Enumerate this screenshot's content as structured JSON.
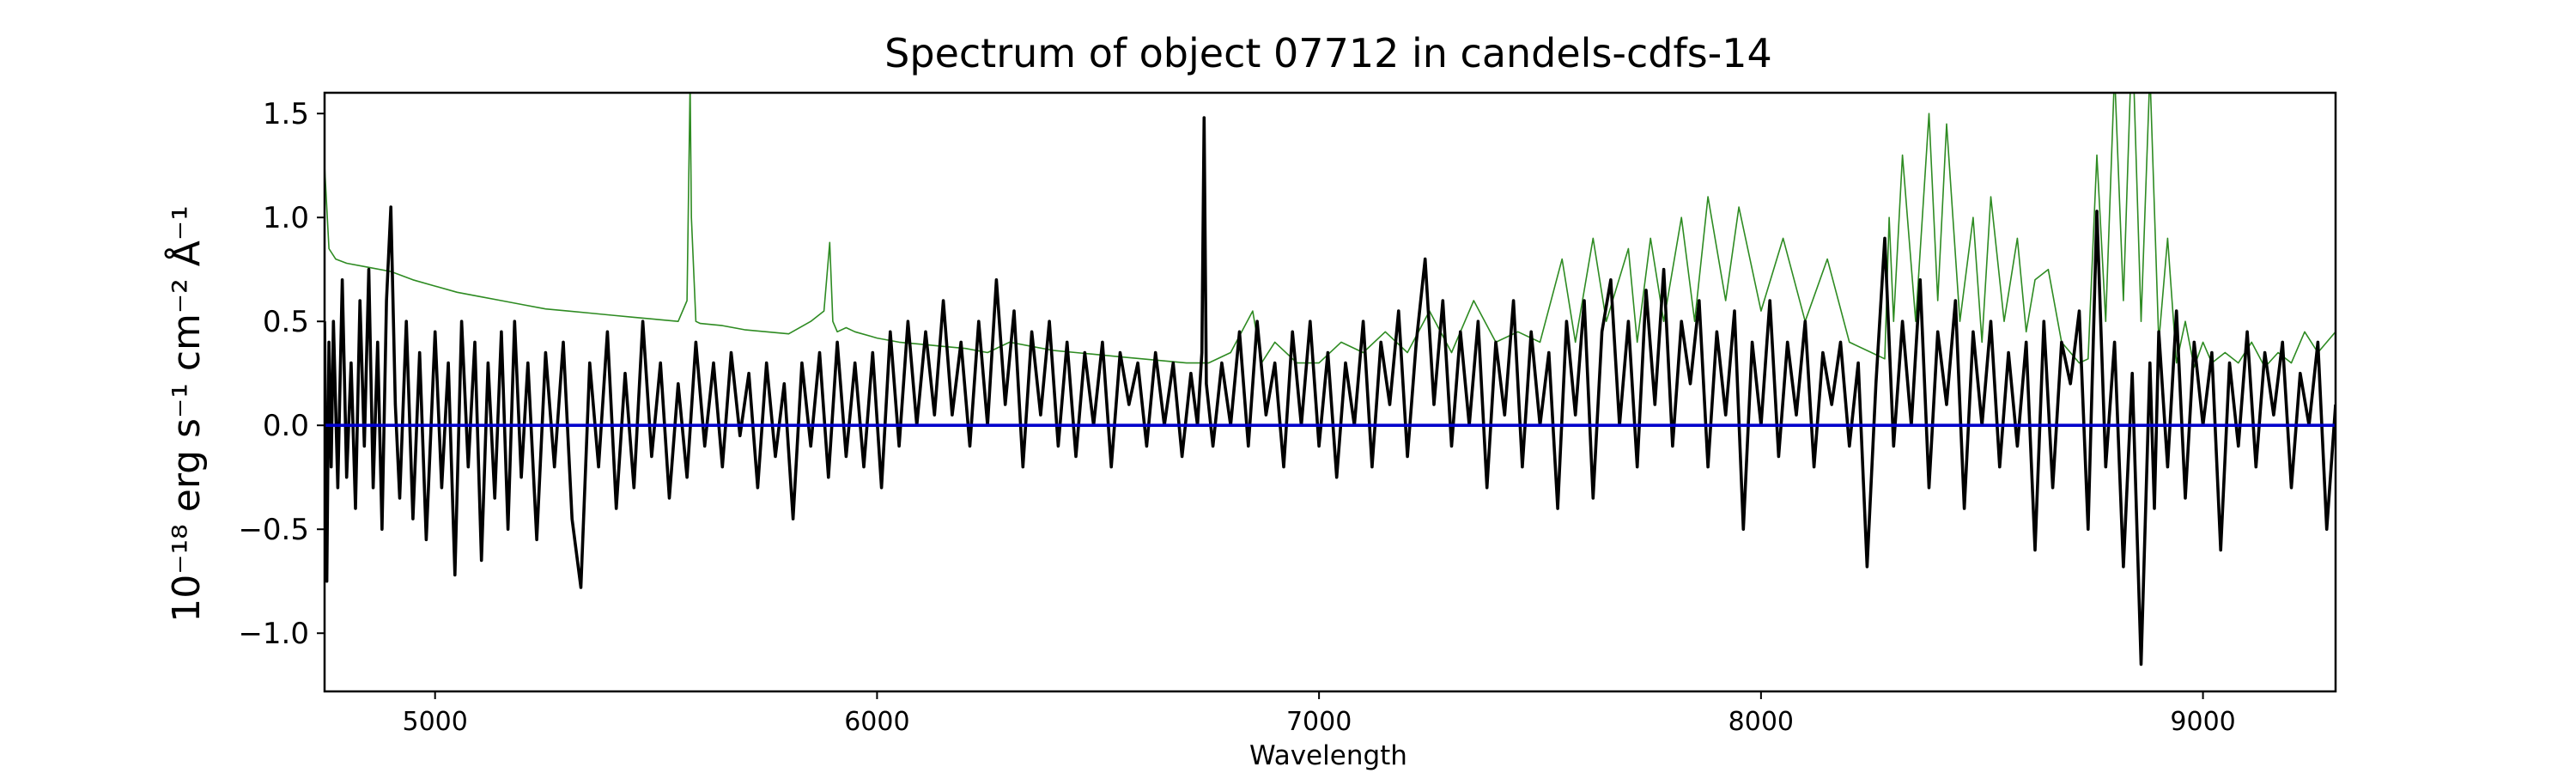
{
  "chart_data": {
    "type": "line",
    "title": "Spectrum of object 07712 in candels-cdfs-14",
    "xlabel": "Wavelength",
    "ylabel": "10⁻¹⁸ erg s⁻¹ cm⁻² Å⁻¹",
    "xlim": [
      4750,
      9300
    ],
    "ylim": [
      -1.28,
      1.6
    ],
    "xticks": [
      5000,
      6000,
      7000,
      8000,
      9000
    ],
    "yticks": [
      -1.0,
      -0.5,
      0.0,
      0.5,
      1.0,
      1.5
    ],
    "xtick_labels": [
      "5000",
      "6000",
      "7000",
      "8000",
      "9000"
    ],
    "ytick_labels": [
      "−1.0",
      "−0.5",
      "0.0",
      "0.5",
      "1.0",
      "1.5"
    ],
    "grid": false,
    "legend": "none",
    "series": [
      {
        "color": "#2e8b22",
        "style": "thin",
        "x": [
          4750,
          4760,
          4775,
          4800,
          4850,
          4900,
          4950,
          5000,
          5050,
          5100,
          5150,
          5200,
          5250,
          5300,
          5350,
          5400,
          5450,
          5500,
          5550,
          5570,
          5577,
          5580,
          5590,
          5600,
          5650,
          5700,
          5750,
          5800,
          5850,
          5880,
          5893,
          5900,
          5910,
          5930,
          5950,
          6000,
          6050,
          6100,
          6150,
          6200,
          6250,
          6300,
          6350,
          6400,
          6450,
          6500,
          6550,
          6600,
          6650,
          6700,
          6750,
          6800,
          6850,
          6870,
          6900,
          6950,
          7000,
          7050,
          7100,
          7150,
          7200,
          7250,
          7300,
          7350,
          7400,
          7450,
          7500,
          7550,
          7580,
          7620,
          7650,
          7700,
          7720,
          7750,
          7780,
          7820,
          7850,
          7880,
          7920,
          7950,
          8000,
          8050,
          8100,
          8150,
          8200,
          8250,
          8280,
          8290,
          8300,
          8320,
          8350,
          8380,
          8400,
          8420,
          8450,
          8480,
          8500,
          8520,
          8550,
          8580,
          8600,
          8620,
          8650,
          8680,
          8700,
          8720,
          8740,
          8760,
          8780,
          8800,
          8820,
          8840,
          8860,
          8880,
          8900,
          8920,
          8940,
          8960,
          8980,
          9000,
          9020,
          9050,
          9080,
          9110,
          9140,
          9170,
          9200,
          9230,
          9260,
          9300
        ],
        "y": [
          1.25,
          0.85,
          0.8,
          0.78,
          0.76,
          0.74,
          0.7,
          0.67,
          0.64,
          0.62,
          0.6,
          0.58,
          0.56,
          0.55,
          0.54,
          0.53,
          0.52,
          0.51,
          0.5,
          0.6,
          1.65,
          1.0,
          0.5,
          0.49,
          0.48,
          0.46,
          0.45,
          0.44,
          0.5,
          0.55,
          0.88,
          0.5,
          0.45,
          0.47,
          0.45,
          0.42,
          0.4,
          0.39,
          0.38,
          0.37,
          0.35,
          0.4,
          0.38,
          0.36,
          0.35,
          0.34,
          0.33,
          0.32,
          0.31,
          0.3,
          0.3,
          0.35,
          0.55,
          0.3,
          0.4,
          0.3,
          0.3,
          0.4,
          0.35,
          0.45,
          0.35,
          0.55,
          0.35,
          0.6,
          0.4,
          0.45,
          0.4,
          0.8,
          0.4,
          0.9,
          0.5,
          0.85,
          0.4,
          0.9,
          0.5,
          1.0,
          0.5,
          1.1,
          0.6,
          1.05,
          0.55,
          0.9,
          0.5,
          0.8,
          0.4,
          0.35,
          0.32,
          1.0,
          0.5,
          1.3,
          0.5,
          1.5,
          0.6,
          1.45,
          0.5,
          1.0,
          0.4,
          1.1,
          0.5,
          0.9,
          0.45,
          0.7,
          0.75,
          0.4,
          0.35,
          0.3,
          0.32,
          1.3,
          0.5,
          1.7,
          0.6,
          1.9,
          0.5,
          1.7,
          0.4,
          0.9,
          0.3,
          0.5,
          0.28,
          0.4,
          0.3,
          0.35,
          0.3,
          0.4,
          0.28,
          0.35,
          0.3,
          0.45,
          0.35,
          0.45
        ]
      },
      {
        "color": "#000000",
        "style": "thick",
        "x": [
          4750,
          4755,
          4760,
          4765,
          4770,
          4780,
          4790,
          4800,
          4810,
          4820,
          4830,
          4840,
          4850,
          4860,
          4870,
          4880,
          4890,
          4900,
          4910,
          4920,
          4935,
          4950,
          4965,
          4980,
          5000,
          5015,
          5030,
          5045,
          5060,
          5075,
          5090,
          5105,
          5120,
          5135,
          5150,
          5165,
          5180,
          5195,
          5210,
          5230,
          5250,
          5270,
          5290,
          5310,
          5330,
          5350,
          5370,
          5390,
          5410,
          5430,
          5450,
          5470,
          5490,
          5510,
          5530,
          5550,
          5570,
          5590,
          5610,
          5630,
          5650,
          5670,
          5690,
          5710,
          5730,
          5750,
          5770,
          5790,
          5810,
          5830,
          5850,
          5870,
          5890,
          5910,
          5930,
          5950,
          5970,
          5990,
          6010,
          6030,
          6050,
          6070,
          6090,
          6110,
          6130,
          6150,
          6170,
          6190,
          6210,
          6230,
          6250,
          6270,
          6290,
          6310,
          6330,
          6350,
          6370,
          6390,
          6410,
          6430,
          6450,
          6470,
          6490,
          6510,
          6530,
          6550,
          6570,
          6590,
          6610,
          6630,
          6650,
          6670,
          6690,
          6710,
          6725,
          6735,
          6740,
          6745,
          6760,
          6780,
          6800,
          6820,
          6840,
          6860,
          6880,
          6900,
          6920,
          6940,
          6960,
          6980,
          7000,
          7020,
          7040,
          7060,
          7080,
          7100,
          7120,
          7140,
          7160,
          7180,
          7200,
          7220,
          7240,
          7260,
          7280,
          7300,
          7320,
          7340,
          7360,
          7380,
          7400,
          7420,
          7440,
          7460,
          7480,
          7500,
          7520,
          7540,
          7560,
          7580,
          7600,
          7620,
          7640,
          7660,
          7680,
          7700,
          7720,
          7740,
          7760,
          7780,
          7800,
          7820,
          7840,
          7860,
          7880,
          7900,
          7920,
          7940,
          7960,
          7980,
          8000,
          8020,
          8040,
          8060,
          8080,
          8100,
          8120,
          8140,
          8160,
          8180,
          8200,
          8220,
          8240,
          8260,
          8280,
          8300,
          8320,
          8340,
          8360,
          8380,
          8400,
          8420,
          8440,
          8460,
          8480,
          8500,
          8520,
          8540,
          8560,
          8580,
          8600,
          8620,
          8640,
          8660,
          8680,
          8700,
          8720,
          8740,
          8760,
          8780,
          8800,
          8820,
          8840,
          8860,
          8880,
          8890,
          8900,
          8920,
          8940,
          8960,
          8980,
          9000,
          9020,
          9040,
          9060,
          9080,
          9100,
          9120,
          9140,
          9160,
          9180,
          9200,
          9220,
          9240,
          9260,
          9280,
          9300
        ],
        "y": [
          0.5,
          -0.75,
          0.4,
          -0.2,
          0.5,
          -0.3,
          0.7,
          -0.25,
          0.3,
          -0.4,
          0.6,
          -0.1,
          0.75,
          -0.3,
          0.4,
          -0.5,
          0.6,
          1.05,
          0.1,
          -0.35,
          0.5,
          -0.45,
          0.35,
          -0.55,
          0.45,
          -0.3,
          0.3,
          -0.72,
          0.5,
          -0.2,
          0.4,
          -0.65,
          0.3,
          -0.35,
          0.45,
          -0.5,
          0.5,
          -0.25,
          0.3,
          -0.55,
          0.35,
          -0.2,
          0.4,
          -0.45,
          -0.78,
          0.3,
          -0.2,
          0.45,
          -0.4,
          0.25,
          -0.3,
          0.5,
          -0.15,
          0.3,
          -0.35,
          0.2,
          -0.25,
          0.4,
          -0.1,
          0.3,
          -0.2,
          0.35,
          -0.05,
          0.25,
          -0.3,
          0.3,
          -0.15,
          0.2,
          -0.45,
          0.3,
          -0.1,
          0.35,
          -0.25,
          0.4,
          -0.15,
          0.3,
          -0.2,
          0.35,
          -0.3,
          0.45,
          -0.1,
          0.5,
          0.0,
          0.45,
          0.05,
          0.6,
          0.05,
          0.4,
          -0.1,
          0.5,
          0.0,
          0.7,
          0.1,
          0.55,
          -0.2,
          0.45,
          0.05,
          0.5,
          -0.1,
          0.4,
          -0.15,
          0.35,
          0.0,
          0.4,
          -0.2,
          0.35,
          0.1,
          0.3,
          -0.1,
          0.35,
          0.0,
          0.3,
          -0.15,
          0.25,
          0.0,
          0.35,
          1.48,
          0.2,
          -0.1,
          0.3,
          0.0,
          0.45,
          -0.1,
          0.5,
          0.05,
          0.3,
          -0.2,
          0.45,
          0.0,
          0.5,
          -0.1,
          0.35,
          -0.25,
          0.3,
          0.0,
          0.5,
          -0.2,
          0.4,
          0.1,
          0.55,
          -0.15,
          0.4,
          0.8,
          0.1,
          0.6,
          -0.1,
          0.45,
          0.0,
          0.5,
          -0.3,
          0.4,
          0.05,
          0.6,
          -0.2,
          0.45,
          0.0,
          0.35,
          -0.4,
          0.5,
          0.05,
          0.6,
          -0.35,
          0.45,
          0.7,
          0.0,
          0.5,
          -0.2,
          0.65,
          0.1,
          0.75,
          -0.1,
          0.5,
          0.2,
          0.6,
          -0.2,
          0.45,
          0.05,
          0.55,
          -0.5,
          0.4,
          0.0,
          0.6,
          -0.15,
          0.4,
          0.05,
          0.5,
          -0.2,
          0.35,
          0.1,
          0.4,
          -0.1,
          0.3,
          -0.68,
          0.2,
          0.9,
          -0.1,
          0.5,
          0.0,
          0.7,
          -0.3,
          0.45,
          0.1,
          0.6,
          -0.4,
          0.45,
          0.0,
          0.5,
          -0.2,
          0.35,
          -0.1,
          0.4,
          -0.6,
          0.5,
          -0.3,
          0.4,
          0.2,
          0.55,
          -0.5,
          1.03,
          -0.2,
          0.4,
          -0.68,
          0.25,
          -1.15,
          0.3,
          -0.4,
          0.45,
          -0.2,
          0.55,
          -0.35,
          0.4,
          0.0,
          0.35,
          -0.6,
          0.3,
          -0.1,
          0.45,
          -0.2,
          0.35,
          0.05,
          0.4,
          -0.3,
          0.25,
          0.0,
          0.4,
          -0.5,
          0.1
        ]
      },
      {
        "color": "#0000cc",
        "style": "thick",
        "x": [
          4750,
          9300
        ],
        "y": [
          0.0,
          0.0
        ]
      }
    ]
  }
}
